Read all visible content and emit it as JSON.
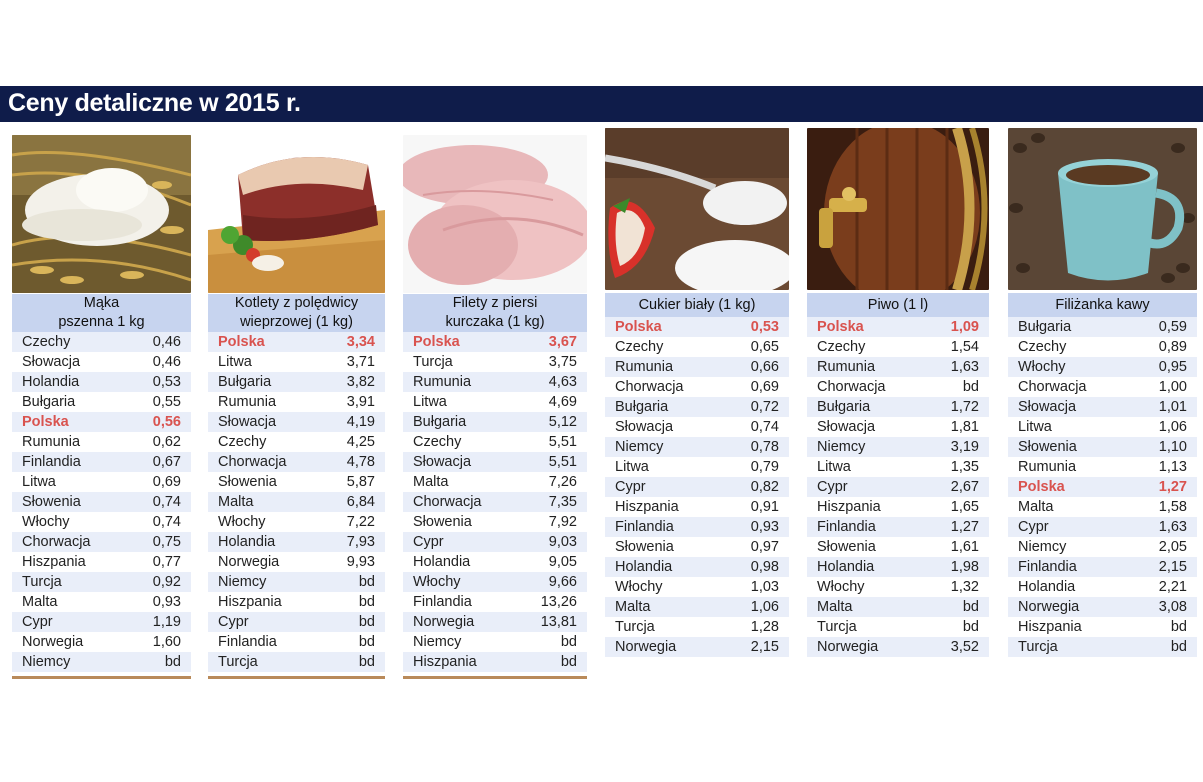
{
  "title": "Ceny detaliczne w 2015 r.",
  "highlight_country": "Polska",
  "colors": {
    "banner": "#0f1c4a",
    "header": "#c7d4ef",
    "stripe": "#e9eef9",
    "highlight": "#d9534f"
  },
  "tables": [
    {
      "photo": "flour-and-wheat-photo",
      "header_lines": [
        "Mąka",
        "pszenna 1 kg"
      ],
      "rows": [
        {
          "country": "Czechy",
          "value": "0,46"
        },
        {
          "country": "Słowacja",
          "value": "0,46"
        },
        {
          "country": "Holandia",
          "value": "0,53"
        },
        {
          "country": "Bułgaria",
          "value": "0,55"
        },
        {
          "country": "Polska",
          "value": "0,56"
        },
        {
          "country": "Rumunia",
          "value": "0,62"
        },
        {
          "country": "Finlandia",
          "value": "0,67"
        },
        {
          "country": "Litwa",
          "value": "0,69"
        },
        {
          "country": "Słowenia",
          "value": "0,74"
        },
        {
          "country": "Włochy",
          "value": "0,74"
        },
        {
          "country": "Chorwacja",
          "value": "0,75"
        },
        {
          "country": "Hiszpania",
          "value": "0,77"
        },
        {
          "country": "Turcja",
          "value": "0,92"
        },
        {
          "country": "Malta",
          "value": "0,93"
        },
        {
          "country": "Cypr",
          "value": "1,19"
        },
        {
          "country": "Norwegia",
          "value": "1,60"
        },
        {
          "country": "Niemcy",
          "value": "bd"
        }
      ]
    },
    {
      "photo": "pork-loin-photo",
      "header_lines": [
        "Kotlety z polędwicy",
        "wieprzowej (1 kg)"
      ],
      "rows": [
        {
          "country": "Polska",
          "value": "3,34"
        },
        {
          "country": "Litwa",
          "value": "3,71"
        },
        {
          "country": "Bułgaria",
          "value": "3,82"
        },
        {
          "country": "Rumunia",
          "value": "3,91"
        },
        {
          "country": "Słowacja",
          "value": "4,19"
        },
        {
          "country": "Czechy",
          "value": "4,25"
        },
        {
          "country": "Chorwacja",
          "value": "4,78"
        },
        {
          "country": "Słowenia",
          "value": "5,87"
        },
        {
          "country": "Malta",
          "value": "6,84"
        },
        {
          "country": "Włochy",
          "value": "7,22"
        },
        {
          "country": "Holandia",
          "value": "7,93"
        },
        {
          "country": "Norwegia",
          "value": "9,93"
        },
        {
          "country": "Niemcy",
          "value": "bd"
        },
        {
          "country": "Hiszpania",
          "value": "bd"
        },
        {
          "country": "Cypr",
          "value": "bd"
        },
        {
          "country": "Finlandia",
          "value": "bd"
        },
        {
          "country": "Turcja",
          "value": "bd"
        }
      ]
    },
    {
      "photo": "chicken-breast-photo",
      "header_lines": [
        "Filety z piersi",
        "kurczaka (1 kg)"
      ],
      "rows": [
        {
          "country": "Polska",
          "value": "3,67"
        },
        {
          "country": "Turcja",
          "value": "3,75"
        },
        {
          "country": "Rumunia",
          "value": "4,63"
        },
        {
          "country": "Litwa",
          "value": "4,69"
        },
        {
          "country": "Bułgaria",
          "value": "5,12"
        },
        {
          "country": "Czechy",
          "value": "5,51"
        },
        {
          "country": "Słowacja",
          "value": "5,51"
        },
        {
          "country": "Malta",
          "value": "7,26"
        },
        {
          "country": "Chorwacja",
          "value": "7,35"
        },
        {
          "country": "Słowenia",
          "value": "7,92"
        },
        {
          "country": "Cypr",
          "value": "9,03"
        },
        {
          "country": "Holandia",
          "value": "9,05"
        },
        {
          "country": "Włochy",
          "value": "9,66"
        },
        {
          "country": "Finlandia",
          "value": "13,26"
        },
        {
          "country": "Norwegia",
          "value": "13,81"
        },
        {
          "country": "Niemcy",
          "value": "bd"
        },
        {
          "country": "Hiszpania",
          "value": "bd"
        }
      ]
    },
    {
      "photo": "sugar-spoon-photo",
      "header_lines": [
        "Cukier biały (1 kg)"
      ],
      "rows": [
        {
          "country": "Polska",
          "value": "0,53"
        },
        {
          "country": "Czechy",
          "value": "0,65"
        },
        {
          "country": "Rumunia",
          "value": "0,66"
        },
        {
          "country": "Chorwacja",
          "value": "0,69"
        },
        {
          "country": "Bułgaria",
          "value": "0,72"
        },
        {
          "country": "Słowacja",
          "value": "0,74"
        },
        {
          "country": "Niemcy",
          "value": "0,78"
        },
        {
          "country": "Litwa",
          "value": "0,79"
        },
        {
          "country": "Cypr",
          "value": "0,82"
        },
        {
          "country": "Hiszpania",
          "value": "0,91"
        },
        {
          "country": "Finlandia",
          "value": "0,93"
        },
        {
          "country": "Słowenia",
          "value": "0,97"
        },
        {
          "country": "Holandia",
          "value": "0,98"
        },
        {
          "country": "Włochy",
          "value": "1,03"
        },
        {
          "country": "Malta",
          "value": "1,06"
        },
        {
          "country": "Turcja",
          "value": "1,28"
        },
        {
          "country": "Norwegia",
          "value": "2,15"
        }
      ]
    },
    {
      "photo": "beer-barrel-photo",
      "header_lines": [
        "Piwo (1 l)"
      ],
      "rows": [
        {
          "country": "Polska",
          "value": "1,09"
        },
        {
          "country": "Czechy",
          "value": "1,54"
        },
        {
          "country": "Rumunia",
          "value": "1,63"
        },
        {
          "country": "Chorwacja",
          "value": "bd"
        },
        {
          "country": "Bułgaria",
          "value": "1,72"
        },
        {
          "country": "Słowacja",
          "value": "1,81"
        },
        {
          "country": "Niemcy",
          "value": "3,19"
        },
        {
          "country": "Litwa",
          "value": "1,35"
        },
        {
          "country": "Cypr",
          "value": "2,67"
        },
        {
          "country": "Hiszpania",
          "value": "1,65"
        },
        {
          "country": "Finlandia",
          "value": "1,27"
        },
        {
          "country": "Słowenia",
          "value": "1,61"
        },
        {
          "country": "Holandia",
          "value": "1,98"
        },
        {
          "country": "Włochy",
          "value": "1,32"
        },
        {
          "country": "Malta",
          "value": "bd"
        },
        {
          "country": "Turcja",
          "value": "bd"
        },
        {
          "country": "Norwegia",
          "value": "3,52"
        }
      ]
    },
    {
      "photo": "coffee-cup-photo",
      "header_lines": [
        "Filiżanka kawy"
      ],
      "rows": [
        {
          "country": "Bułgaria",
          "value": "0,59"
        },
        {
          "country": "Czechy",
          "value": "0,89"
        },
        {
          "country": "Włochy",
          "value": "0,95"
        },
        {
          "country": "Chorwacja",
          "value": "1,00"
        },
        {
          "country": "Słowacja",
          "value": "1,01"
        },
        {
          "country": "Litwa",
          "value": "1,06"
        },
        {
          "country": "Słowenia",
          "value": "1,10"
        },
        {
          "country": "Rumunia",
          "value": "1,13"
        },
        {
          "country": "Polska",
          "value": "1,27"
        },
        {
          "country": "Malta",
          "value": "1,58"
        },
        {
          "country": "Cypr",
          "value": "1,63"
        },
        {
          "country": "Niemcy",
          "value": "2,05"
        },
        {
          "country": "Finlandia",
          "value": "2,15"
        },
        {
          "country": "Holandia",
          "value": "2,21"
        },
        {
          "country": "Norwegia",
          "value": "3,08"
        },
        {
          "country": "Hiszpania",
          "value": "bd"
        },
        {
          "country": "Turcja",
          "value": "bd"
        }
      ]
    }
  ]
}
